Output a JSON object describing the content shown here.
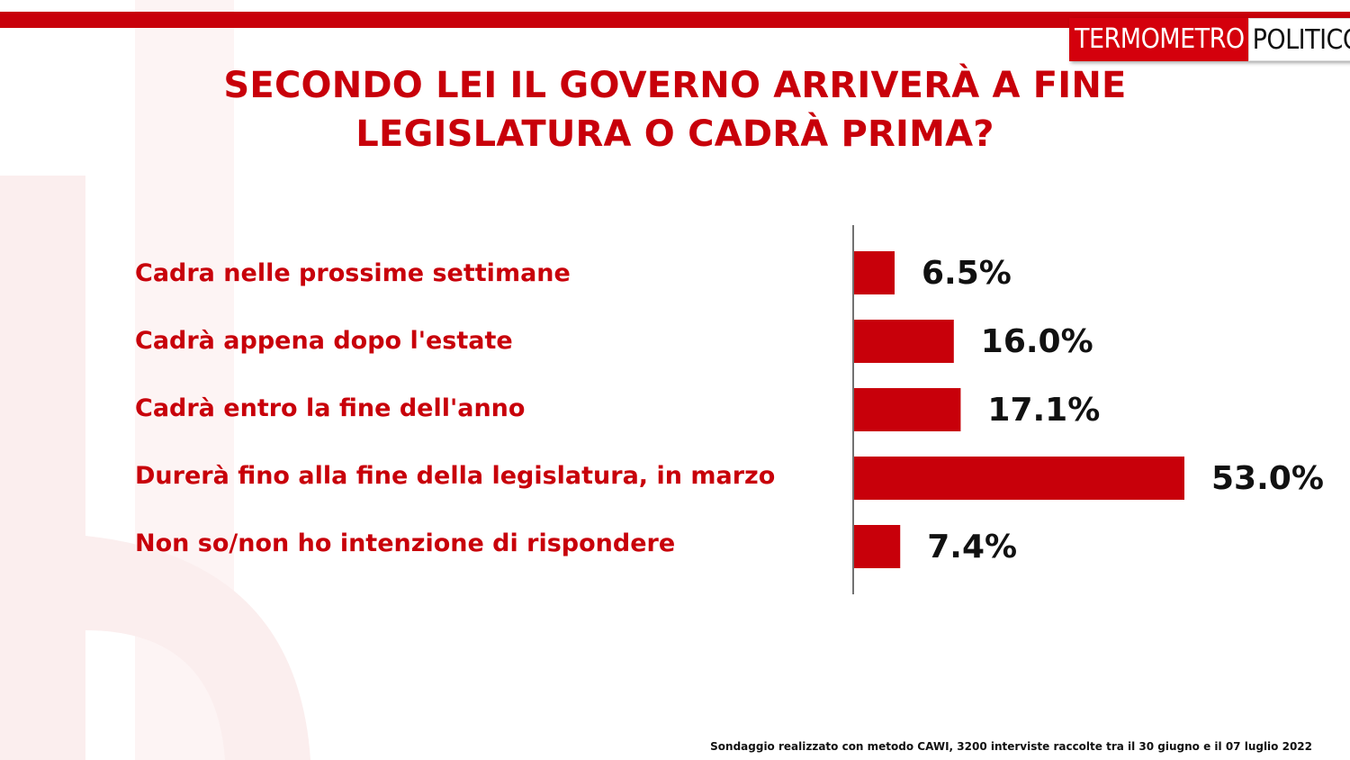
{
  "header": {
    "logo_part1": "TERMOMETRO",
    "logo_part2": "POLITICO",
    "title_line1": "SECONDO LEI IL GOVERNO ARRIVERÀ A FINE",
    "title_line2": "LEGISLATURA O CADRÀ PRIMA?"
  },
  "colors": {
    "accent": "#c8000a",
    "bar": "#c8000a",
    "value_text": "#111111"
  },
  "chart_data": {
    "type": "bar",
    "orientation": "horizontal",
    "title": "SECONDO LEI IL GOVERNO ARRIVERÀ A FINE LEGISLATURA O CADRÀ PRIMA?",
    "categories": [
      "Cadra nelle prossime settimane",
      "Cadrà  appena dopo l'estate",
      "Cadrà  entro la fine dell'anno",
      "Durerà  fino alla fine della legislatura, in marzo",
      "Non so/non ho intenzione di rispondere"
    ],
    "values": [
      6.5,
      16.0,
      17.1,
      53.0,
      7.4
    ],
    "value_labels": [
      "6.5%",
      "16.0%",
      "17.1%",
      "53.0%",
      "7.4%"
    ],
    "xlim": [
      0,
      60
    ],
    "grid": false,
    "legend": "none"
  },
  "footnote": "Sondaggio realizzato con metodo CAWI, 3200 interviste raccolte tra il 30 giugno  e il 07 luglio 2022"
}
